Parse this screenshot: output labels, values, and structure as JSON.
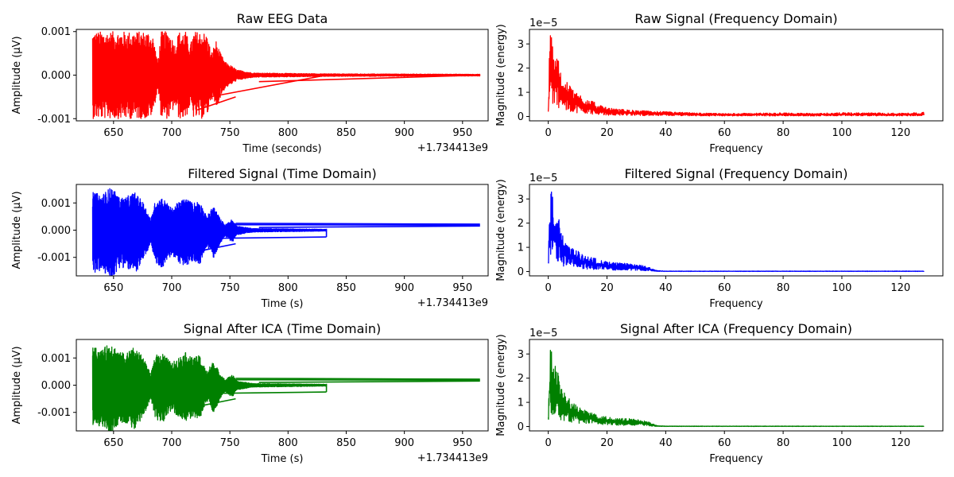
{
  "chart_data": [
    {
      "type": "line",
      "title": "Raw EEG Data",
      "xlabel": "Time (seconds)",
      "ylabel": "Amplitude (µV)",
      "color": "#ff0000",
      "x_offset_label": "+1.734413e9",
      "xlim": [
        618,
        972
      ],
      "ylim": [
        -0.00105,
        0.00105
      ],
      "xticks": [
        650,
        700,
        750,
        800,
        850,
        900,
        950
      ],
      "yticks": [
        {
          "v": 0.001,
          "label": "0.001"
        },
        {
          "v": 0.0,
          "label": "0.000"
        },
        {
          "v": -0.001,
          "label": "-0.001"
        }
      ],
      "envelope": [
        [
          632,
          0.001
        ],
        [
          680,
          0.001
        ],
        [
          684,
          0.0009
        ],
        [
          688,
          0.0003
        ],
        [
          691,
          0.001
        ],
        [
          698,
          0.001
        ],
        [
          703,
          0.0007
        ],
        [
          706,
          0.001
        ],
        [
          712,
          0.001
        ],
        [
          716,
          0.0007
        ],
        [
          719,
          0.001
        ],
        [
          727,
          0.001
        ],
        [
          731,
          0.0009
        ],
        [
          734,
          0.0005
        ],
        [
          738,
          0.0008
        ],
        [
          742,
          0.0005
        ],
        [
          746,
          0.0003
        ],
        [
          752,
          0.0002
        ],
        [
          756,
          0.00012
        ],
        [
          770,
          5e-05
        ],
        [
          800,
          4e-05
        ],
        [
          833,
          3e-05
        ],
        [
          965,
          2e-05
        ]
      ],
      "diagonals": [
        [
          [
            722,
            -0.0008
          ],
          [
            755,
            -0.0005
          ]
        ],
        [
          [
            733,
            -0.0005
          ],
          [
            833,
            0.0
          ]
        ],
        [
          [
            775,
            -0.00015
          ],
          [
            965,
            0.0
          ]
        ]
      ]
    },
    {
      "type": "line",
      "title": "Raw Signal (Frequency Domain)",
      "xlabel": "Frequency",
      "ylabel": "Magnitude (energy)",
      "color": "#ff0000",
      "scale_label": "1e−5",
      "xlim": [
        -6.4,
        134.4
      ],
      "ylim": [
        -0.18,
        3.6
      ],
      "xticks": [
        0,
        20,
        40,
        60,
        80,
        100,
        120
      ],
      "yticks": [
        {
          "v": 0,
          "label": "0"
        },
        {
          "v": 1,
          "label": "1"
        },
        {
          "v": 2,
          "label": "2"
        },
        {
          "v": 3,
          "label": "3"
        }
      ],
      "envelope": [
        [
          0,
          0.3
        ],
        [
          0.5,
          3.4
        ],
        [
          1.2,
          3.5
        ],
        [
          2,
          2.8
        ],
        [
          3,
          2.6
        ],
        [
          5,
          1.6
        ],
        [
          8,
          1.2
        ],
        [
          12,
          0.8
        ],
        [
          20,
          0.35
        ],
        [
          30,
          0.25
        ],
        [
          40,
          0.2
        ],
        [
          50,
          0.15
        ],
        [
          60,
          0.12
        ],
        [
          70,
          0.14
        ],
        [
          80,
          0.15
        ],
        [
          90,
          0.13
        ],
        [
          100,
          0.16
        ],
        [
          110,
          0.15
        ],
        [
          120,
          0.14
        ],
        [
          128,
          0.17
        ]
      ]
    },
    {
      "type": "line",
      "title": "Filtered Signal (Time Domain)",
      "xlabel": "Time (s)",
      "ylabel": "Amplitude (µV)",
      "color": "#0000ff",
      "x_offset_label": "+1.734413e9",
      "xlim": [
        618,
        972
      ],
      "ylim": [
        -0.00168,
        0.00168
      ],
      "xticks": [
        650,
        700,
        750,
        800,
        850,
        900,
        950
      ],
      "yticks": [
        {
          "v": 0.001,
          "label": "0.001"
        },
        {
          "v": 0.0,
          "label": "0.000"
        },
        {
          "v": -0.001,
          "label": "-0.001"
        }
      ],
      "envelope": [
        [
          632,
          0.0014
        ],
        [
          640,
          0.0013
        ],
        [
          648,
          0.0016
        ],
        [
          655,
          0.0012
        ],
        [
          660,
          0.0012
        ],
        [
          668,
          0.0014
        ],
        [
          676,
          0.001
        ],
        [
          682,
          0.0004
        ],
        [
          686,
          0.0011
        ],
        [
          692,
          0.0012
        ],
        [
          700,
          0.0008
        ],
        [
          705,
          0.001
        ],
        [
          712,
          0.0012
        ],
        [
          718,
          0.001
        ],
        [
          724,
          0.0011
        ],
        [
          730,
          0.0005
        ],
        [
          736,
          0.0009
        ],
        [
          742,
          0.0004
        ],
        [
          746,
          0.0002
        ],
        [
          752,
          0.0004
        ],
        [
          756,
          0.00015
        ],
        [
          770,
          6e-05
        ],
        [
          833,
          3e-05
        ]
      ],
      "neg_scale": 1.15,
      "diagonals": [
        [
          [
            720,
            -0.0008
          ],
          [
            755,
            -0.0005
          ]
        ],
        [
          [
            735,
            -0.0003
          ],
          [
            833,
            -0.00025
          ]
        ],
        [
          [
            755,
            0.00025
          ],
          [
            965,
            0.00022
          ]
        ],
        [
          [
            755,
            0.0002
          ],
          [
            965,
            0.00018
          ]
        ],
        [
          [
            775,
            0.0001
          ],
          [
            965,
            0.00015
          ]
        ],
        [
          [
            833,
            -0.00025
          ],
          [
            833,
            5e-05
          ]
        ]
      ]
    },
    {
      "type": "line",
      "title": "Filtered Signal (Frequency Domain)",
      "xlabel": "Frequency",
      "ylabel": "Magnitude (energy)",
      "color": "#0000ff",
      "scale_label": "1e−5",
      "xlim": [
        -6.4,
        134.4
      ],
      "ylim": [
        -0.18,
        3.6
      ],
      "xticks": [
        0,
        20,
        40,
        60,
        80,
        100,
        120
      ],
      "yticks": [
        {
          "v": 0,
          "label": "0"
        },
        {
          "v": 1,
          "label": "1"
        },
        {
          "v": 2,
          "label": "2"
        },
        {
          "v": 3,
          "label": "3"
        }
      ],
      "envelope": [
        [
          0,
          0.4
        ],
        [
          0.5,
          3.2
        ],
        [
          1.1,
          3.5
        ],
        [
          2,
          2.6
        ],
        [
          3,
          2.5
        ],
        [
          5,
          1.5
        ],
        [
          8,
          1.0
        ],
        [
          12,
          0.7
        ],
        [
          20,
          0.4
        ],
        [
          30,
          0.3
        ],
        [
          34,
          0.2
        ],
        [
          37,
          0.04
        ],
        [
          40,
          0.02
        ],
        [
          128,
          0.02
        ]
      ]
    },
    {
      "type": "line",
      "title": "Signal After ICA (Time Domain)",
      "xlabel": "Time (s)",
      "ylabel": "Amplitude (µV)",
      "color": "#008000",
      "x_offset_label": "+1.734413e9",
      "xlim": [
        618,
        972
      ],
      "ylim": [
        -0.00168,
        0.00168
      ],
      "xticks": [
        650,
        700,
        750,
        800,
        850,
        900,
        950
      ],
      "yticks": [
        {
          "v": 0.001,
          "label": "0.001"
        },
        {
          "v": 0.0,
          "label": "0.000"
        },
        {
          "v": -0.001,
          "label": "-0.001"
        }
      ],
      "envelope": [
        [
          632,
          0.0014
        ],
        [
          640,
          0.0013
        ],
        [
          648,
          0.0016
        ],
        [
          655,
          0.0012
        ],
        [
          660,
          0.0012
        ],
        [
          668,
          0.0014
        ],
        [
          676,
          0.001
        ],
        [
          682,
          0.0004
        ],
        [
          686,
          0.0011
        ],
        [
          692,
          0.0012
        ],
        [
          700,
          0.0008
        ],
        [
          705,
          0.001
        ],
        [
          712,
          0.0012
        ],
        [
          718,
          0.001
        ],
        [
          724,
          0.0011
        ],
        [
          730,
          0.0005
        ],
        [
          736,
          0.0009
        ],
        [
          742,
          0.0004
        ],
        [
          746,
          0.0002
        ],
        [
          752,
          0.0004
        ],
        [
          756,
          0.00015
        ],
        [
          770,
          6e-05
        ],
        [
          833,
          3e-05
        ]
      ],
      "neg_scale": 1.15,
      "diagonals": [
        [
          [
            720,
            -0.0008
          ],
          [
            755,
            -0.0005
          ]
        ],
        [
          [
            735,
            -0.0003
          ],
          [
            833,
            -0.00025
          ]
        ],
        [
          [
            755,
            0.00025
          ],
          [
            965,
            0.00022
          ]
        ],
        [
          [
            755,
            0.0002
          ],
          [
            965,
            0.00018
          ]
        ],
        [
          [
            775,
            0.0001
          ],
          [
            965,
            0.00015
          ]
        ],
        [
          [
            833,
            -0.00025
          ],
          [
            833,
            5e-05
          ]
        ]
      ]
    },
    {
      "type": "line",
      "title": "Signal After ICA (Frequency Domain)",
      "xlabel": "Frequency",
      "ylabel": "Magnitude (energy)",
      "color": "#008000",
      "scale_label": "1e−5",
      "xlim": [
        -6.4,
        134.4
      ],
      "ylim": [
        -0.18,
        3.6
      ],
      "xticks": [
        0,
        20,
        40,
        60,
        80,
        100,
        120
      ],
      "yticks": [
        {
          "v": 0,
          "label": "0"
        },
        {
          "v": 1,
          "label": "1"
        },
        {
          "v": 2,
          "label": "2"
        },
        {
          "v": 3,
          "label": "3"
        }
      ],
      "envelope": [
        [
          0,
          0.4
        ],
        [
          0.5,
          3.2
        ],
        [
          1.1,
          3.5
        ],
        [
          2,
          2.6
        ],
        [
          3,
          2.5
        ],
        [
          5,
          1.5
        ],
        [
          8,
          1.0
        ],
        [
          12,
          0.7
        ],
        [
          20,
          0.4
        ],
        [
          30,
          0.3
        ],
        [
          34,
          0.2
        ],
        [
          37,
          0.04
        ],
        [
          40,
          0.02
        ],
        [
          128,
          0.02
        ]
      ]
    }
  ]
}
